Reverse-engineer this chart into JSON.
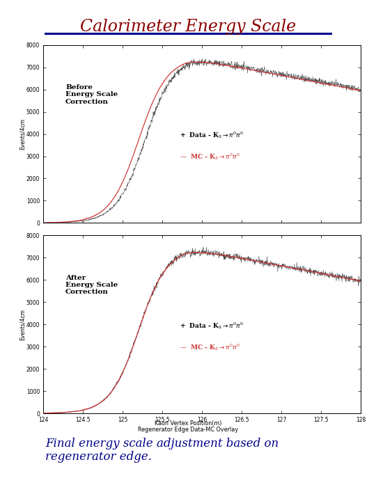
{
  "title": "Calorimeter Energy Scale",
  "title_color": "#8B0000",
  "title_underline_color": "#00008B",
  "subtitle_line1": "Final energy scale adjustment based on",
  "subtitle_line2": "regenerator edge.",
  "subtitle_color": "#00008B",
  "xlabel_top": "Kaon Vertex Position(m)",
  "xlabel_bot": "Regenerator Edge Data-MC Overlay",
  "ylabel": "Events/4cm",
  "xmin": 124.0,
  "xmax": 128.0,
  "ymin": 0,
  "ymax": 8000,
  "yticks": [
    0,
    1000,
    2000,
    3000,
    4000,
    5000,
    6000,
    7000,
    8000
  ],
  "xticks": [
    124,
    124.5,
    125,
    125.5,
    126,
    126.5,
    127,
    127.5,
    128
  ],
  "xtick_labels": [
    "124",
    "124.5",
    "125",
    "125.5",
    "126",
    "126.5",
    "127",
    "127.5",
    "128"
  ],
  "label_before": "Before\nEnergy Scale\nCorrection",
  "label_after": "After\nEnergy Scale\nCorrection",
  "data_color": "#333333",
  "mc_color": "#cc3333",
  "bg_color": "#ffffff",
  "panel_bg": "#ffffff"
}
